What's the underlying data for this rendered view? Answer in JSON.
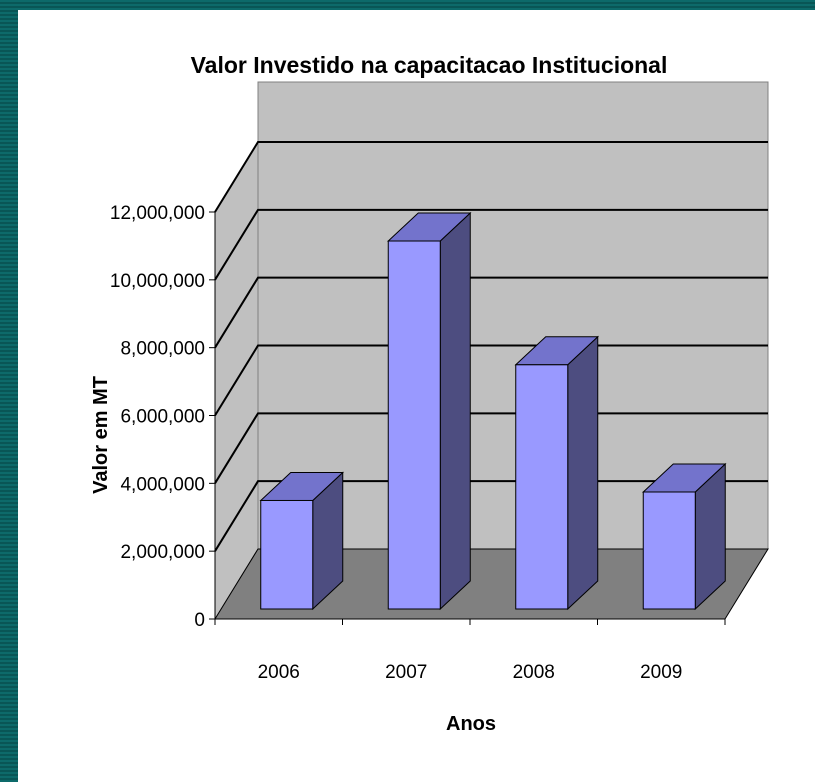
{
  "chart_data": {
    "type": "bar",
    "title": "Valor Investido na capacitacao Institucional",
    "xlabel": "Anos",
    "ylabel": "Valor em MT",
    "categories": [
      "2006",
      "2007",
      "2008",
      "2009"
    ],
    "series": [
      {
        "values": [
          3200000,
          10850000,
          7200000,
          3450000
        ]
      }
    ],
    "ylim": [
      0,
      12000000
    ],
    "yticks": [
      "0",
      "2,000,000",
      "4,000,000",
      "6,000,000",
      "8,000,000",
      "10,000,000",
      "12,000,000"
    ],
    "grid": true,
    "legend": "none",
    "three_d": true,
    "colors": {
      "bar_front": "#9999ff",
      "bar_top": "#7373cc",
      "bar_side": "#4d4d80",
      "wall": "#c0c0c0",
      "floor": "#808080",
      "frame": "#0b6060"
    }
  }
}
